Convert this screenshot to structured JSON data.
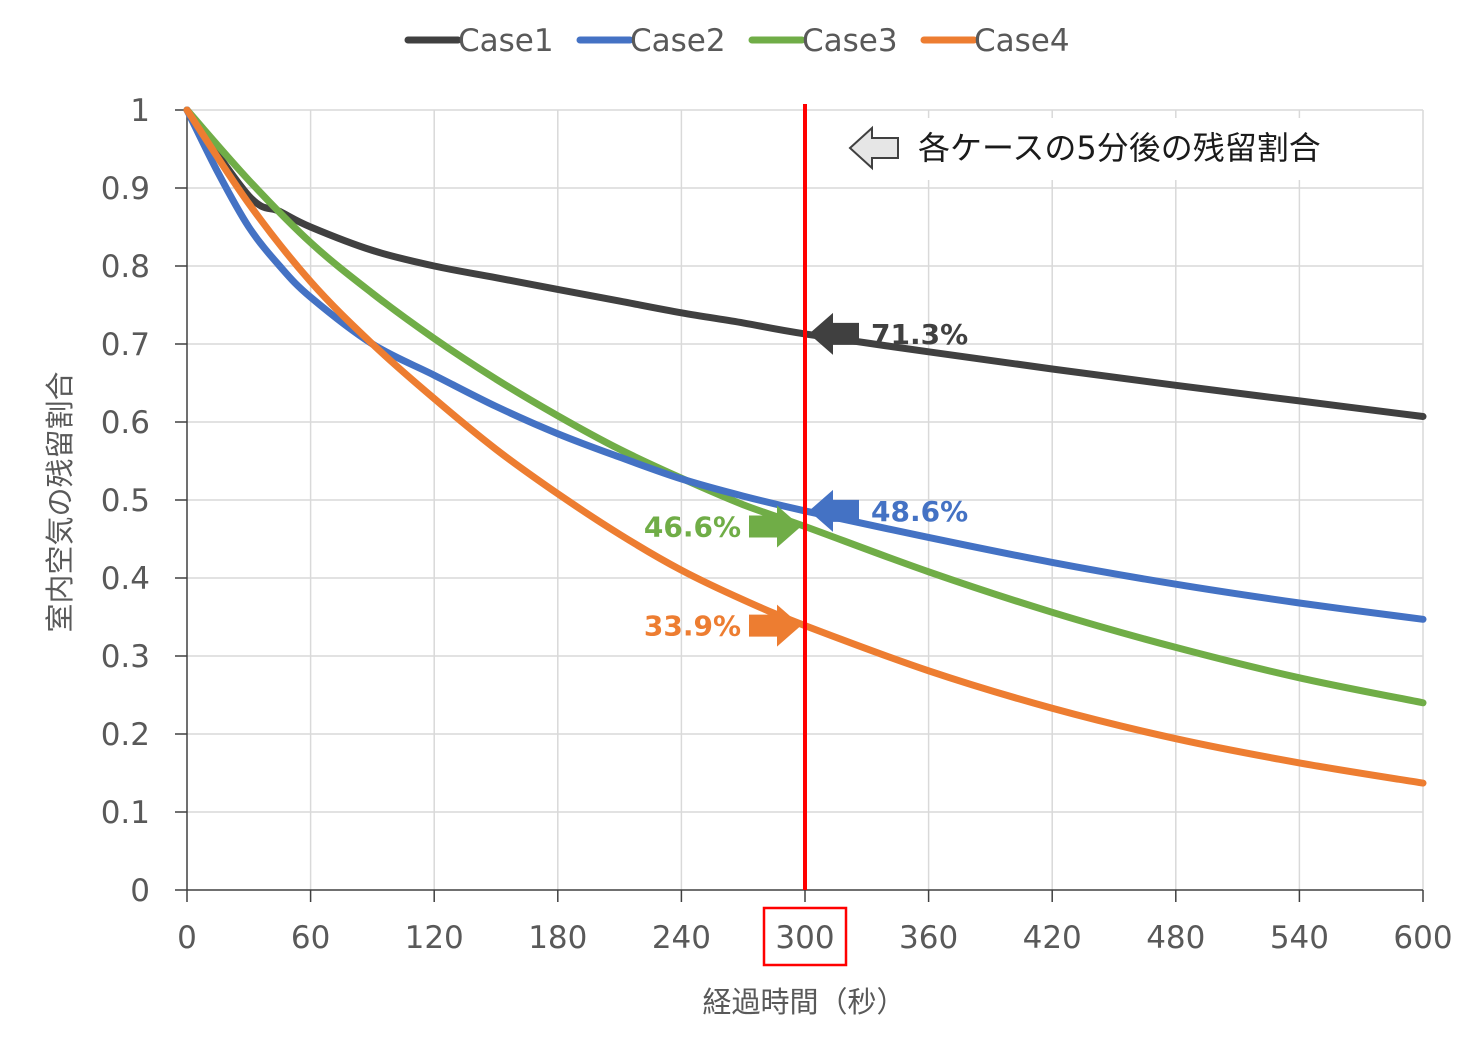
{
  "chart_data": {
    "type": "line",
    "title": "",
    "xlabel": "経過時間（秒）",
    "ylabel": "室内空気の残留割合",
    "xlim": [
      0,
      600
    ],
    "ylim": [
      0,
      1
    ],
    "x_ticks": [
      "0",
      "60",
      "120",
      "180",
      "240",
      "300",
      "360",
      "420",
      "480",
      "540",
      "600"
    ],
    "y_ticks": [
      "0",
      "0.1",
      "0.2",
      "0.3",
      "0.4",
      "0.5",
      "0.6",
      "0.7",
      "0.8",
      "0.9",
      "1"
    ],
    "grid": true,
    "legend_position": "top-center",
    "series": [
      {
        "name": "Case1",
        "color": "#404040",
        "x": [
          0,
          30,
          45,
          60,
          90,
          120,
          150,
          180,
          210,
          240,
          270,
          300,
          360,
          420,
          480,
          540,
          600
        ],
        "y": [
          1.0,
          0.89,
          0.87,
          0.85,
          0.82,
          0.8,
          0.785,
          0.77,
          0.755,
          0.74,
          0.727,
          0.713,
          0.69,
          0.668,
          0.647,
          0.627,
          0.607
        ]
      },
      {
        "name": "Case2",
        "color": "#4472C4",
        "x": [
          0,
          15,
          30,
          45,
          60,
          90,
          120,
          150,
          180,
          210,
          240,
          270,
          300,
          360,
          420,
          480,
          540,
          600
        ],
        "y": [
          1.0,
          0.92,
          0.85,
          0.8,
          0.76,
          0.7,
          0.66,
          0.62,
          0.585,
          0.555,
          0.527,
          0.505,
          0.486,
          0.452,
          0.42,
          0.392,
          0.368,
          0.347
        ]
      },
      {
        "name": "Case3",
        "color": "#70AD47",
        "x": [
          0,
          30,
          60,
          90,
          120,
          150,
          180,
          210,
          240,
          270,
          300,
          360,
          420,
          480,
          540,
          600
        ],
        "y": [
          1.0,
          0.91,
          0.83,
          0.765,
          0.707,
          0.655,
          0.608,
          0.565,
          0.528,
          0.494,
          0.466,
          0.408,
          0.356,
          0.311,
          0.272,
          0.24
        ]
      },
      {
        "name": "Case4",
        "color": "#ED7D31",
        "x": [
          0,
          30,
          60,
          90,
          120,
          150,
          180,
          210,
          240,
          270,
          300,
          360,
          420,
          480,
          540,
          600
        ],
        "y": [
          1.0,
          0.88,
          0.78,
          0.7,
          0.63,
          0.565,
          0.508,
          0.456,
          0.41,
          0.372,
          0.339,
          0.281,
          0.233,
          0.194,
          0.163,
          0.137
        ]
      }
    ],
    "marker_line": {
      "x": 300,
      "color": "#FF0000"
    },
    "highlighted_tick": "300",
    "annotations": [
      {
        "series": "Case1",
        "label": "71.3%",
        "value": 0.713,
        "side": "right",
        "color": "#404040"
      },
      {
        "series": "Case2",
        "label": "48.6%",
        "value": 0.486,
        "side": "right",
        "color": "#4472C4"
      },
      {
        "series": "Case3",
        "label": "46.6%",
        "value": 0.466,
        "side": "left",
        "color": "#70AD47"
      },
      {
        "series": "Case4",
        "label": "33.9%",
        "value": 0.339,
        "side": "left",
        "color": "#ED7D31"
      }
    ],
    "note": "各ケースの5分後の残留割合"
  }
}
